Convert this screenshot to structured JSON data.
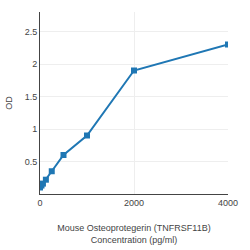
{
  "chart_data": {
    "type": "line",
    "x": [
      0,
      31.25,
      62.5,
      125,
      250,
      500,
      1000,
      2000,
      4000
    ],
    "values": [
      0.1,
      0.13,
      0.16,
      0.22,
      0.35,
      0.6,
      0.9,
      1.9,
      2.3
    ],
    "xlabel": "Mouse Osteoprotegerin (TNFRSF11B)\nConcentration (pg/ml)",
    "ylabel": "OD",
    "xlim": [
      0,
      4000
    ],
    "ylim": [
      0.0,
      2.8
    ],
    "xticks": [
      0,
      2000,
      4000
    ],
    "yticks": [
      0.5,
      1,
      1.5,
      2,
      2.5
    ],
    "grid": true,
    "marker": "square"
  }
}
